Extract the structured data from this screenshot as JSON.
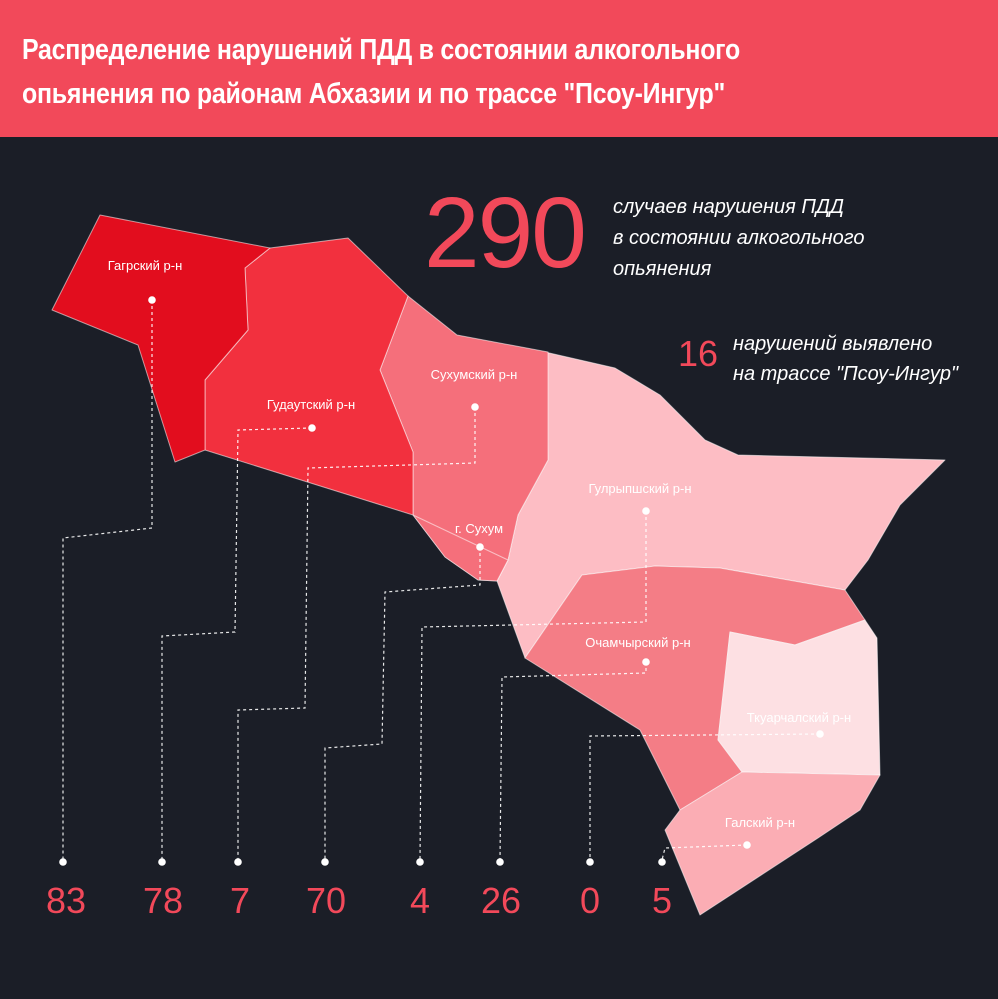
{
  "header": {
    "title": "Распределение нарушений ПДД в состоянии алкогольного\nопьянения по районам Абхазии и по трассе \"Псоу-Ингур\""
  },
  "summary": {
    "total": "290",
    "total_caption": "случаев нарушения ПДД\nв состоянии алкогольного\nопьянения",
    "highway": "16",
    "highway_caption": "нарушений выявлено\nна трассе \"Псоу-Ингур\""
  },
  "colors": {
    "header_bg": "#f2495a",
    "background": "#1b1e27",
    "accent": "#f2495a",
    "gagra": "#e20d1e",
    "gudauta": "#f2303e",
    "sukhum_district": "#f56f7b",
    "gulripsh": "#fdbdc4",
    "ochamchira": "#f47d86",
    "tkuarchal": "#fde0e3",
    "gal": "#fbadb4"
  },
  "districts": [
    {
      "name": "Гагрский р-н",
      "value": "83"
    },
    {
      "name": "Гудаутский р-н",
      "value": "78"
    },
    {
      "name": "Сухумский р-н",
      "value": "7"
    },
    {
      "name": "г. Сухум",
      "value": "70"
    },
    {
      "name": "Гулрыпшский р-н",
      "value": "4"
    },
    {
      "name": "Очамчырский р-н",
      "value": "26"
    },
    {
      "name": "Ткуарчалский р-н",
      "value": "0"
    },
    {
      "name": "Галский р-н",
      "value": "5"
    }
  ]
}
